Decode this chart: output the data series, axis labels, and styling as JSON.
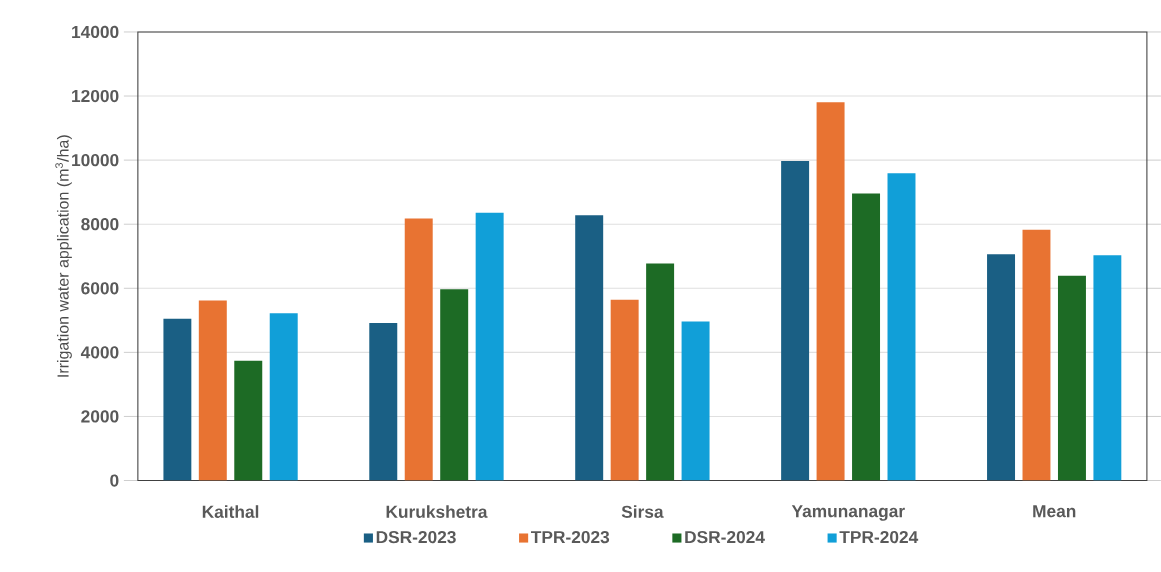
{
  "chart_data": {
    "type": "bar",
    "ylabel": "Irrigation water application (m$^{3}$/ha)",
    "categories": [
      "Kaithal",
      "Kurukshetra",
      "Sirsa",
      "Yamunanagar",
      "Mean"
    ],
    "series": [
      {
        "name": "DSR-2023",
        "color": "#1a5f84",
        "values": [
          5050,
          4920,
          8280,
          9970,
          7060
        ]
      },
      {
        "name": "TPR-2023",
        "color": "#e87332",
        "values": [
          5620,
          8180,
          5640,
          11810,
          7830
        ]
      },
      {
        "name": "DSR-2024",
        "color": "#1d6b25",
        "values": [
          3740,
          5970,
          6770,
          8960,
          6390
        ]
      },
      {
        "name": "TPR-2024",
        "color": "#119fd8",
        "values": [
          5220,
          8360,
          4960,
          9590,
          7030
        ]
      }
    ],
    "ylim": [
      0,
      14000
    ],
    "yticks": [
      0,
      2000,
      4000,
      6000,
      8000,
      10000,
      12000,
      14000
    ],
    "grid": "y",
    "legend": "bottom"
  }
}
